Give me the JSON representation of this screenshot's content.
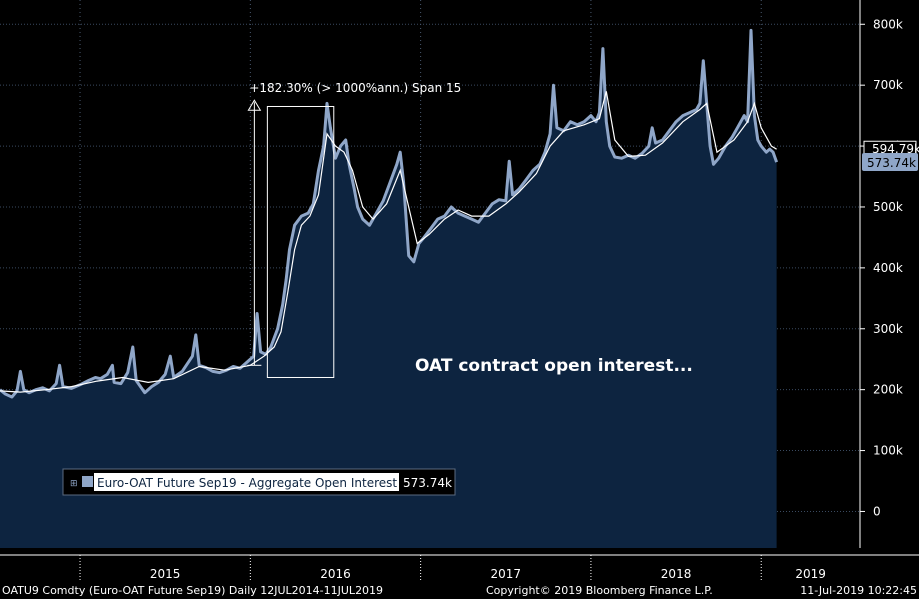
{
  "chart_data": {
    "type": "area",
    "ylim": [
      -60000,
      830000
    ],
    "y_ticks": [
      {
        "value": 800000,
        "label": "800k"
      },
      {
        "value": 700000,
        "label": "700k"
      },
      {
        "value": 600000,
        "label": "600k"
      },
      {
        "value": 500000,
        "label": "500k"
      },
      {
        "value": 400000,
        "label": "400k"
      },
      {
        "value": 300000,
        "label": "300k"
      },
      {
        "value": 200000,
        "label": "200k"
      },
      {
        "value": 100000,
        "label": "100k"
      },
      {
        "value": 0,
        "label": "0"
      }
    ],
    "x_range": [
      2014.53,
      2019.58
    ],
    "x_years": [
      "2015",
      "2016",
      "2017",
      "2018",
      "2019"
    ],
    "series_name": "Euro-OAT Future Sep19 - Aggregate Open Interest",
    "last_value_label": "573.74k",
    "last_value": 573740,
    "ma_label": "594.79k",
    "ma_value": 594790,
    "points": [
      [
        2014.53,
        200000
      ],
      [
        2014.56,
        193000
      ],
      [
        2014.6,
        188000
      ],
      [
        2014.63,
        198000
      ],
      [
        2014.65,
        230000
      ],
      [
        2014.67,
        200000
      ],
      [
        2014.7,
        195000
      ],
      [
        2014.74,
        200000
      ],
      [
        2014.78,
        203000
      ],
      [
        2014.82,
        198000
      ],
      [
        2014.86,
        210000
      ],
      [
        2014.88,
        240000
      ],
      [
        2014.9,
        205000
      ],
      [
        2014.95,
        202000
      ],
      [
        2015.0,
        208000
      ],
      [
        2015.05,
        215000
      ],
      [
        2015.09,
        220000
      ],
      [
        2015.12,
        218000
      ],
      [
        2015.16,
        225000
      ],
      [
        2015.19,
        240000
      ],
      [
        2015.2,
        212000
      ],
      [
        2015.24,
        210000
      ],
      [
        2015.28,
        228000
      ],
      [
        2015.31,
        270000
      ],
      [
        2015.33,
        215000
      ],
      [
        2015.38,
        195000
      ],
      [
        2015.42,
        205000
      ],
      [
        2015.46,
        212000
      ],
      [
        2015.5,
        225000
      ],
      [
        2015.53,
        255000
      ],
      [
        2015.55,
        220000
      ],
      [
        2015.6,
        230000
      ],
      [
        2015.66,
        255000
      ],
      [
        2015.68,
        290000
      ],
      [
        2015.7,
        240000
      ],
      [
        2015.74,
        236000
      ],
      [
        2015.78,
        230000
      ],
      [
        2015.82,
        228000
      ],
      [
        2015.86,
        232000
      ],
      [
        2015.9,
        238000
      ],
      [
        2015.94,
        235000
      ],
      [
        2015.98,
        245000
      ],
      [
        2016.02,
        255000
      ],
      [
        2016.04,
        325000
      ],
      [
        2016.06,
        262000
      ],
      [
        2016.09,
        258000
      ],
      [
        2016.12,
        270000
      ],
      [
        2016.14,
        285000
      ],
      [
        2016.16,
        300000
      ],
      [
        2016.19,
        340000
      ],
      [
        2016.21,
        380000
      ],
      [
        2016.23,
        430000
      ],
      [
        2016.26,
        470000
      ],
      [
        2016.3,
        485000
      ],
      [
        2016.34,
        490000
      ],
      [
        2016.37,
        505000
      ],
      [
        2016.4,
        560000
      ],
      [
        2016.43,
        600000
      ],
      [
        2016.45,
        670000
      ],
      [
        2016.47,
        630000
      ],
      [
        2016.5,
        580000
      ],
      [
        2016.53,
        600000
      ],
      [
        2016.56,
        610000
      ],
      [
        2016.58,
        570000
      ],
      [
        2016.61,
        530000
      ],
      [
        2016.63,
        500000
      ],
      [
        2016.66,
        480000
      ],
      [
        2016.7,
        470000
      ],
      [
        2016.74,
        490000
      ],
      [
        2016.78,
        510000
      ],
      [
        2016.82,
        540000
      ],
      [
        2016.86,
        570000
      ],
      [
        2016.88,
        590000
      ],
      [
        2016.9,
        540000
      ],
      [
        2016.93,
        420000
      ],
      [
        2016.96,
        410000
      ],
      [
        2016.99,
        440000
      ],
      [
        2017.02,
        450000
      ],
      [
        2017.06,
        465000
      ],
      [
        2017.1,
        480000
      ],
      [
        2017.14,
        485000
      ],
      [
        2017.18,
        500000
      ],
      [
        2017.22,
        490000
      ],
      [
        2017.26,
        485000
      ],
      [
        2017.3,
        480000
      ],
      [
        2017.34,
        475000
      ],
      [
        2017.38,
        490000
      ],
      [
        2017.42,
        505000
      ],
      [
        2017.46,
        512000
      ],
      [
        2017.5,
        510000
      ],
      [
        2017.52,
        575000
      ],
      [
        2017.54,
        520000
      ],
      [
        2017.58,
        530000
      ],
      [
        2017.62,
        545000
      ],
      [
        2017.66,
        560000
      ],
      [
        2017.7,
        570000
      ],
      [
        2017.73,
        590000
      ],
      [
        2017.76,
        620000
      ],
      [
        2017.78,
        700000
      ],
      [
        2017.8,
        630000
      ],
      [
        2017.84,
        625000
      ],
      [
        2017.88,
        640000
      ],
      [
        2017.92,
        635000
      ],
      [
        2017.96,
        640000
      ],
      [
        2018.0,
        650000
      ],
      [
        2018.03,
        640000
      ],
      [
        2018.05,
        655000
      ],
      [
        2018.07,
        760000
      ],
      [
        2018.09,
        640000
      ],
      [
        2018.11,
        600000
      ],
      [
        2018.14,
        582000
      ],
      [
        2018.18,
        580000
      ],
      [
        2018.22,
        585000
      ],
      [
        2018.26,
        580000
      ],
      [
        2018.3,
        588000
      ],
      [
        2018.34,
        600000
      ],
      [
        2018.36,
        630000
      ],
      [
        2018.38,
        605000
      ],
      [
        2018.42,
        610000
      ],
      [
        2018.46,
        625000
      ],
      [
        2018.5,
        640000
      ],
      [
        2018.54,
        650000
      ],
      [
        2018.58,
        655000
      ],
      [
        2018.62,
        660000
      ],
      [
        2018.64,
        670000
      ],
      [
        2018.66,
        740000
      ],
      [
        2018.68,
        670000
      ],
      [
        2018.7,
        600000
      ],
      [
        2018.72,
        570000
      ],
      [
        2018.75,
        580000
      ],
      [
        2018.79,
        600000
      ],
      [
        2018.83,
        615000
      ],
      [
        2018.86,
        630000
      ],
      [
        2018.88,
        640000
      ],
      [
        2018.9,
        650000
      ],
      [
        2018.92,
        640000
      ],
      [
        2018.94,
        790000
      ],
      [
        2018.96,
        650000
      ],
      [
        2018.98,
        610000
      ],
      [
        2019.0,
        600000
      ],
      [
        2019.03,
        590000
      ],
      [
        2019.05,
        595000
      ],
      [
        2019.07,
        590000
      ],
      [
        2019.09,
        573740
      ]
    ],
    "ma_points": [
      [
        2014.53,
        198000
      ],
      [
        2014.65,
        196000
      ],
      [
        2014.8,
        200000
      ],
      [
        2014.95,
        205000
      ],
      [
        2015.1,
        214000
      ],
      [
        2015.25,
        220000
      ],
      [
        2015.4,
        212000
      ],
      [
        2015.55,
        218000
      ],
      [
        2015.7,
        238000
      ],
      [
        2015.85,
        232000
      ],
      [
        2016.0,
        240000
      ],
      [
        2016.08,
        255000
      ],
      [
        2016.14,
        270000
      ],
      [
        2016.18,
        295000
      ],
      [
        2016.22,
        360000
      ],
      [
        2016.26,
        430000
      ],
      [
        2016.3,
        470000
      ],
      [
        2016.35,
        485000
      ],
      [
        2016.4,
        520000
      ],
      [
        2016.45,
        620000
      ],
      [
        2016.5,
        600000
      ],
      [
        2016.55,
        590000
      ],
      [
        2016.6,
        560000
      ],
      [
        2016.66,
        500000
      ],
      [
        2016.72,
        480000
      ],
      [
        2016.8,
        505000
      ],
      [
        2016.88,
        560000
      ],
      [
        2016.93,
        500000
      ],
      [
        2016.98,
        440000
      ],
      [
        2017.05,
        455000
      ],
      [
        2017.14,
        480000
      ],
      [
        2017.22,
        495000
      ],
      [
        2017.3,
        485000
      ],
      [
        2017.4,
        485000
      ],
      [
        2017.5,
        505000
      ],
      [
        2017.58,
        525000
      ],
      [
        2017.68,
        555000
      ],
      [
        2017.76,
        600000
      ],
      [
        2017.84,
        625000
      ],
      [
        2017.96,
        635000
      ],
      [
        2018.05,
        645000
      ],
      [
        2018.09,
        690000
      ],
      [
        2018.14,
        610000
      ],
      [
        2018.22,
        583000
      ],
      [
        2018.32,
        585000
      ],
      [
        2018.42,
        605000
      ],
      [
        2018.54,
        640000
      ],
      [
        2018.64,
        660000
      ],
      [
        2018.68,
        670000
      ],
      [
        2018.74,
        590000
      ],
      [
        2018.84,
        610000
      ],
      [
        2018.92,
        640000
      ],
      [
        2018.96,
        670000
      ],
      [
        2019.0,
        630000
      ],
      [
        2019.06,
        600000
      ],
      [
        2019.09,
        594790
      ]
    ],
    "annotation_label": "+182.30% (> 1000%ann.) Span 15",
    "annotation_range": [
      2016.05,
      2016.43
    ],
    "annotation_low": 240000,
    "annotation_high": 672000,
    "box_range": [
      2016.1,
      2016.49
    ],
    "box_ylim": [
      220000,
      665000
    ],
    "caption": "OAT contract open interest...",
    "legend_value": "573.74k"
  },
  "colors": {
    "background": "#000000",
    "area_fill": "#0d2440",
    "line": "#8fa6c8",
    "ma_line": "#ffffff",
    "grid": "#3a4a60",
    "year_separator": "#4a5a70",
    "badge_fill": "#8fa6c8"
  },
  "footer": {
    "left": "OATU9 Comdty (Euro-OAT Future  Sep19)  Daily 12JUL2014-11JUL2019",
    "center": "Copyright© 2019 Bloomberg Finance L.P.",
    "right": "11-Jul-2019 10:22:45"
  },
  "legend_icon": "square-icon"
}
